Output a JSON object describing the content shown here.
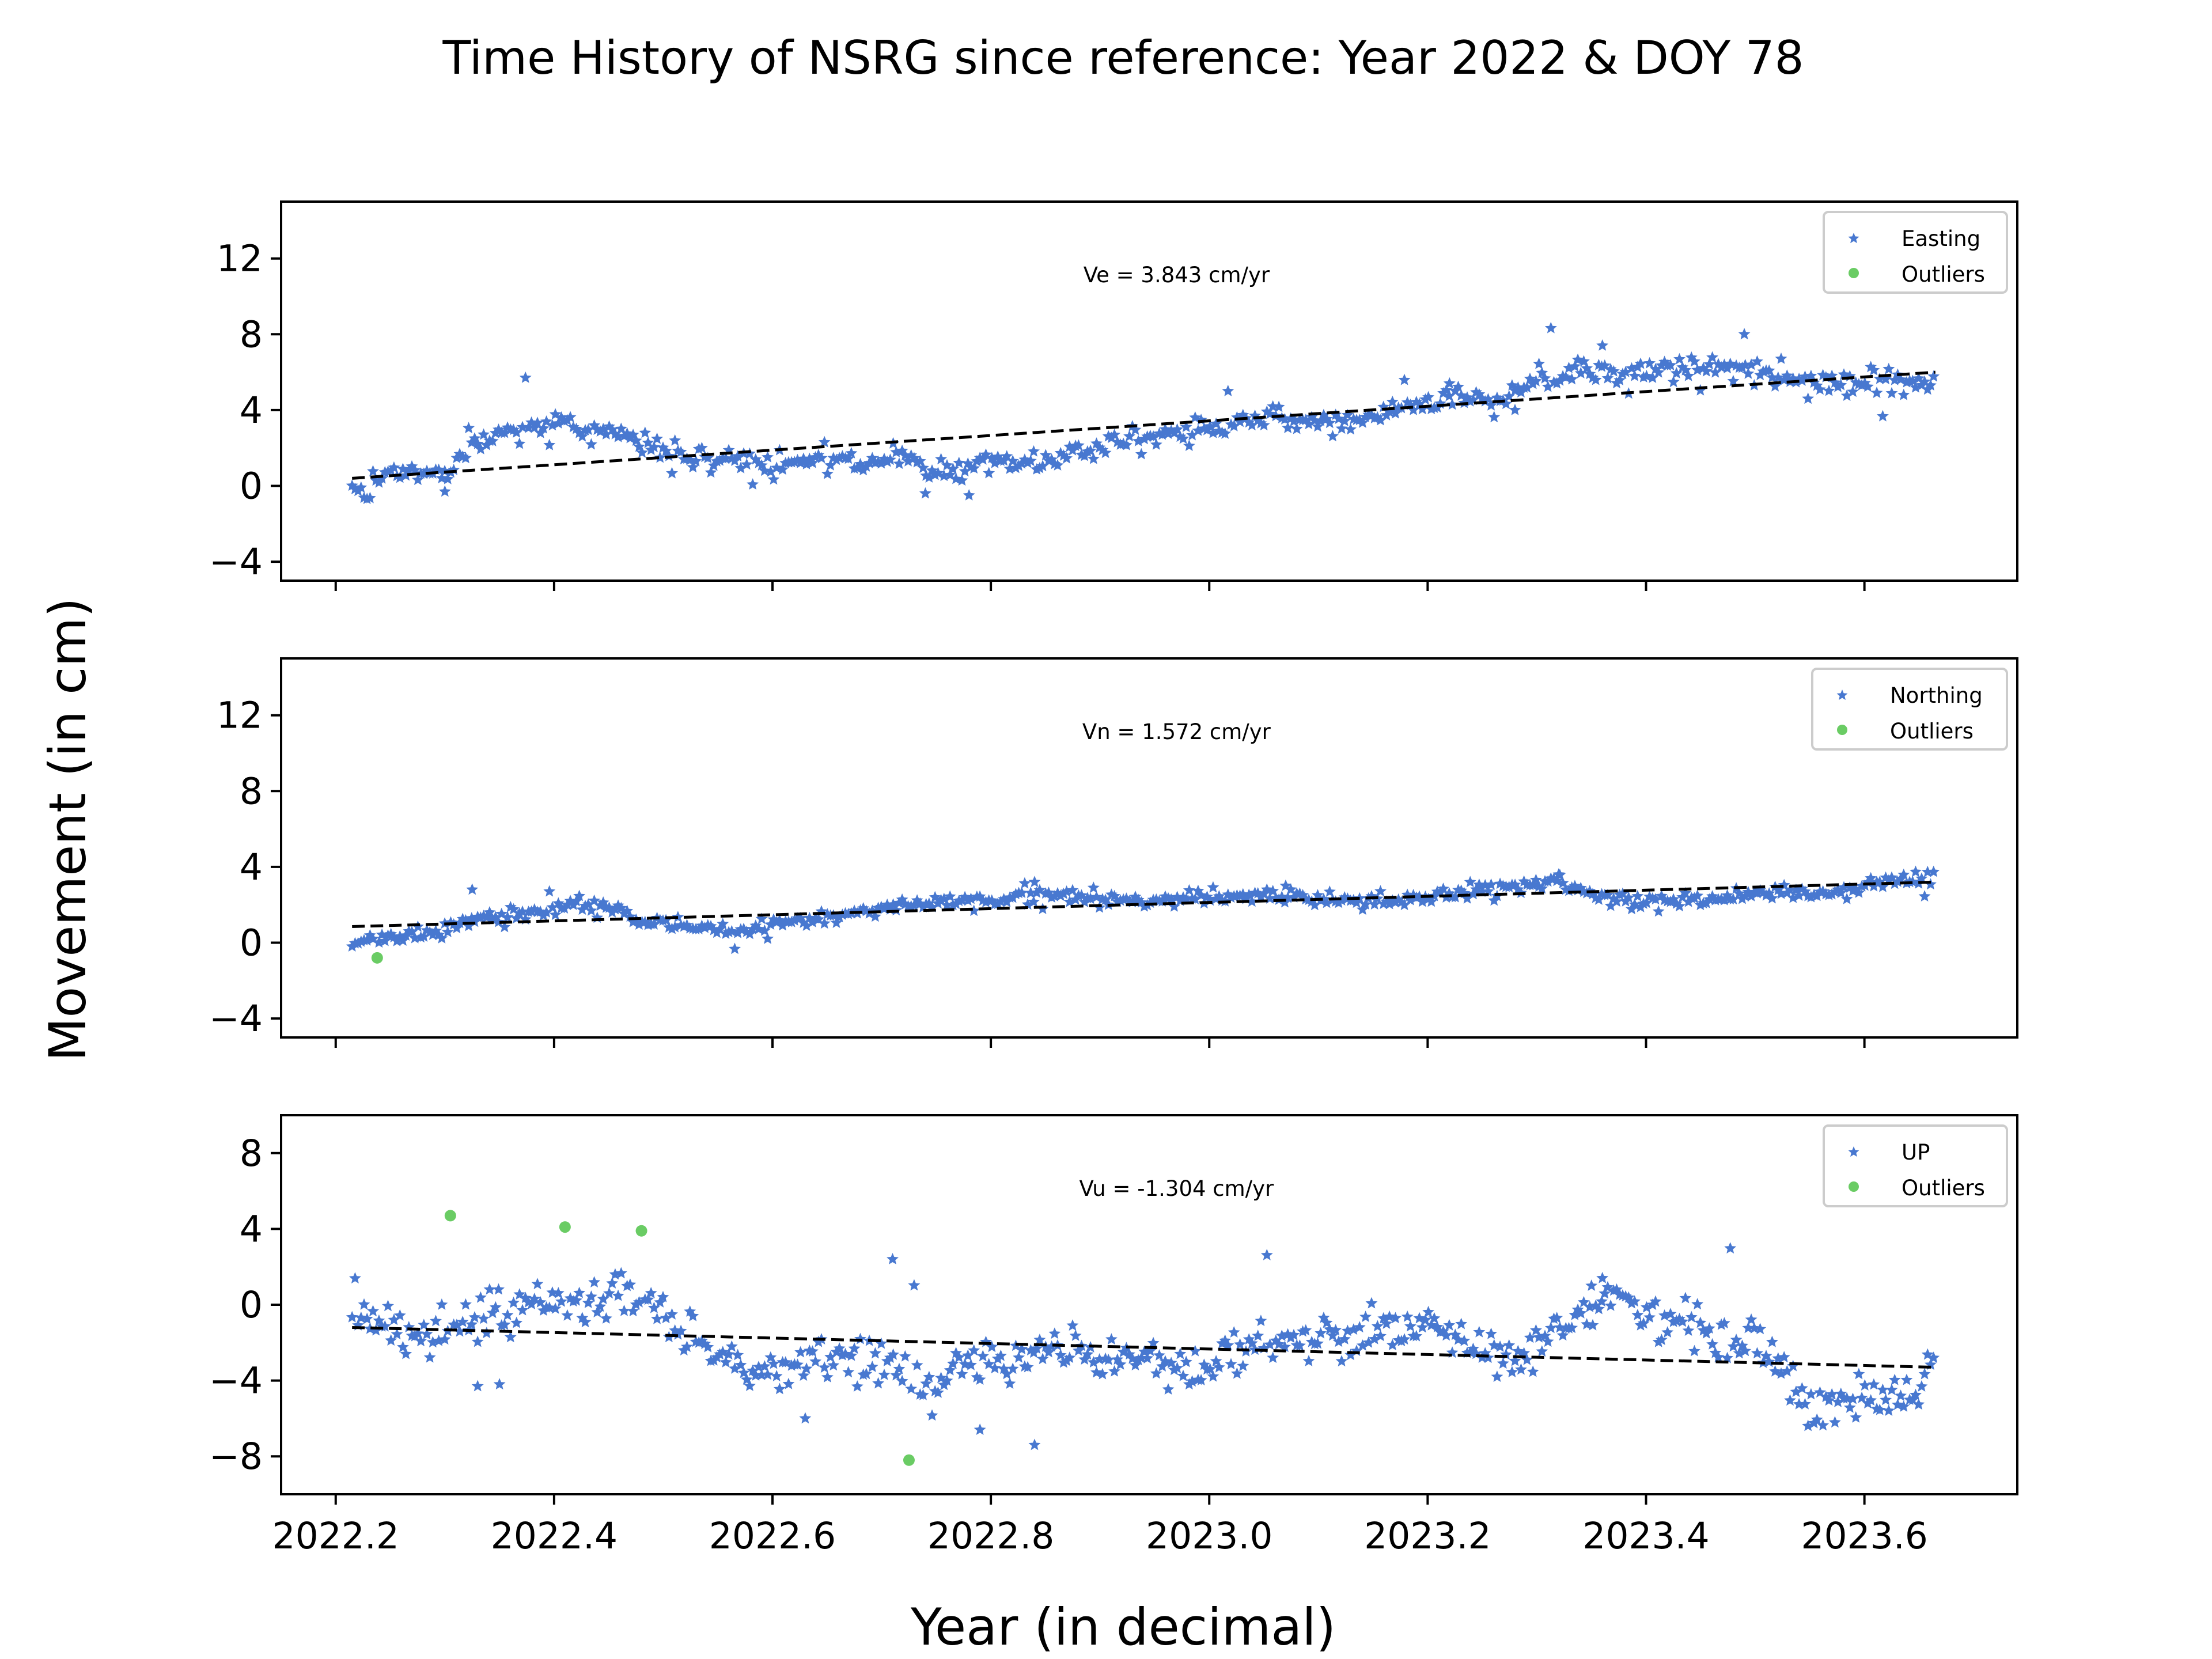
{
  "figure": {
    "title": "Time History of NSRG since reference: Year 2022 & DOY 78",
    "xlabel": "Year (in decimal)",
    "ylabel": "Movement (in cm)"
  },
  "colors": {
    "data": "#4878d0",
    "outliers": "#6acc64",
    "trend": "#000000"
  },
  "chart_data": [
    {
      "type": "scatter",
      "panel": "easting",
      "series": [
        {
          "name": "Easting"
        },
        {
          "name": "Outliers"
        }
      ],
      "annotation": "Ve =  3.843 cm/yr",
      "velocity": 3.843,
      "trend": {
        "x": [
          2022.215,
          2023.665
        ],
        "y": [
          0.4,
          6.0
        ]
      },
      "xlim": [
        2022.15,
        2023.74
      ],
      "ylim": [
        -5,
        15
      ],
      "yticks": [
        -4,
        0,
        4,
        8,
        12
      ],
      "xticks": [
        2022.2,
        2022.4,
        2022.6,
        2022.8,
        2023.0,
        2023.2,
        2023.4,
        2023.6
      ],
      "legend": "top-right",
      "profile": [
        [
          2022.215,
          0.1
        ],
        [
          2022.23,
          -0.5
        ],
        [
          2022.25,
          0.8
        ],
        [
          2022.28,
          0.9
        ],
        [
          2022.3,
          0.5
        ],
        [
          2022.32,
          1.8
        ],
        [
          2022.35,
          3.0
        ],
        [
          2022.38,
          2.8
        ],
        [
          2022.4,
          3.6
        ],
        [
          2022.42,
          3.0
        ],
        [
          2022.45,
          3.0
        ],
        [
          2022.48,
          2.2
        ],
        [
          2022.52,
          1.5
        ],
        [
          2022.56,
          1.4
        ],
        [
          2022.6,
          1.0
        ],
        [
          2022.64,
          1.6
        ],
        [
          2022.68,
          1.0
        ],
        [
          2022.72,
          1.6
        ],
        [
          2022.76,
          0.6
        ],
        [
          2022.8,
          1.3
        ],
        [
          2022.84,
          1.2
        ],
        [
          2022.87,
          1.8
        ],
        [
          2022.9,
          2.2
        ],
        [
          2022.94,
          2.5
        ],
        [
          2022.98,
          3.0
        ],
        [
          2023.02,
          3.0
        ],
        [
          2023.06,
          3.8
        ],
        [
          2023.1,
          3.4
        ],
        [
          2023.14,
          3.6
        ],
        [
          2023.18,
          4.2
        ],
        [
          2023.22,
          4.5
        ],
        [
          2023.26,
          4.6
        ],
        [
          2023.3,
          5.4
        ],
        [
          2023.34,
          6.2
        ],
        [
          2023.38,
          5.8
        ],
        [
          2023.42,
          6.2
        ],
        [
          2023.46,
          6.4
        ],
        [
          2023.5,
          6.0
        ],
        [
          2023.54,
          5.6
        ],
        [
          2023.58,
          5.4
        ],
        [
          2023.62,
          5.4
        ],
        [
          2023.665,
          5.6
        ]
      ],
      "noise": 0.55,
      "seed": 11,
      "outliers": {
        "x": [],
        "y": []
      },
      "extra_points": {
        "x": [
          2022.3,
          2022.78,
          2022.74,
          2023.22,
          2023.28,
          2023.36,
          2023.49
        ],
        "y": [
          -0.3,
          -0.5,
          -0.4,
          5.4,
          4.0,
          7.4,
          8.0
        ]
      }
    },
    {
      "type": "scatter",
      "panel": "northing",
      "series": [
        {
          "name": "Northing"
        },
        {
          "name": "Outliers"
        }
      ],
      "annotation": "Vn =  1.572 cm/yr",
      "velocity": 1.572,
      "trend": {
        "x": [
          2022.215,
          2023.665
        ],
        "y": [
          0.85,
          3.2
        ]
      },
      "xlim": [
        2022.15,
        2023.74
      ],
      "ylim": [
        -5,
        15
      ],
      "yticks": [
        -4,
        0,
        4,
        8,
        12
      ],
      "xticks": [
        2022.2,
        2022.4,
        2022.6,
        2022.8,
        2023.0,
        2023.2,
        2023.4,
        2023.6
      ],
      "legend": "top-right",
      "profile": [
        [
          2022.215,
          0.0
        ],
        [
          2022.25,
          0.2
        ],
        [
          2022.3,
          0.6
        ],
        [
          2022.34,
          1.6
        ],
        [
          2022.38,
          1.6
        ],
        [
          2022.42,
          2.0
        ],
        [
          2022.46,
          1.8
        ],
        [
          2022.48,
          1.0
        ],
        [
          2022.52,
          1.0
        ],
        [
          2022.56,
          0.5
        ],
        [
          2022.6,
          1.0
        ],
        [
          2022.64,
          1.2
        ],
        [
          2022.68,
          1.6
        ],
        [
          2022.72,
          2.0
        ],
        [
          2022.76,
          2.2
        ],
        [
          2022.8,
          2.2
        ],
        [
          2022.84,
          2.6
        ],
        [
          2022.88,
          2.4
        ],
        [
          2022.92,
          2.2
        ],
        [
          2022.96,
          2.2
        ],
        [
          2023.0,
          2.4
        ],
        [
          2023.04,
          2.4
        ],
        [
          2023.08,
          2.4
        ],
        [
          2023.12,
          2.2
        ],
        [
          2023.16,
          2.2
        ],
        [
          2023.2,
          2.4
        ],
        [
          2023.24,
          2.8
        ],
        [
          2023.28,
          3.0
        ],
        [
          2023.32,
          3.2
        ],
        [
          2023.36,
          2.4
        ],
        [
          2023.4,
          2.2
        ],
        [
          2023.44,
          2.2
        ],
        [
          2023.48,
          2.4
        ],
        [
          2023.52,
          2.6
        ],
        [
          2023.56,
          2.6
        ],
        [
          2023.6,
          3.0
        ],
        [
          2023.665,
          3.6
        ]
      ],
      "noise": 0.3,
      "seed": 23,
      "outliers": {
        "x": [
          2022.238
        ],
        "y": [
          -0.8
        ]
      },
      "extra_points": {
        "x": [
          2022.325,
          2022.84,
          2023.07,
          2023.32
        ],
        "y": [
          2.8,
          3.2,
          3.0,
          3.6
        ]
      }
    },
    {
      "type": "scatter",
      "panel": "up",
      "series": [
        {
          "name": "UP"
        },
        {
          "name": "Outliers"
        }
      ],
      "annotation": "Vu = -1.304 cm/yr",
      "velocity": -1.304,
      "trend": {
        "x": [
          2022.215,
          2023.665
        ],
        "y": [
          -1.2,
          -3.3
        ]
      },
      "xlim": [
        2022.15,
        2023.74
      ],
      "ylim": [
        -10,
        10
      ],
      "yticks": [
        -8,
        -4,
        0,
        4,
        8
      ],
      "xticks": [
        2022.2,
        2022.4,
        2022.6,
        2022.8,
        2023.0,
        2023.2,
        2023.4,
        2023.6
      ],
      "xticklabels": [
        "2022.2",
        "2022.4",
        "2022.6",
        "2022.8",
        "2023.0",
        "2023.2",
        "2023.4",
        "2023.6"
      ],
      "legend": "top-right",
      "profile": [
        [
          2022.215,
          0.0
        ],
        [
          2022.24,
          -0.8
        ],
        [
          2022.27,
          -2.0
        ],
        [
          2022.3,
          -1.2
        ],
        [
          2022.34,
          -0.8
        ],
        [
          2022.38,
          0.2
        ],
        [
          2022.42,
          -0.2
        ],
        [
          2022.46,
          0.8
        ],
        [
          2022.5,
          -0.5
        ],
        [
          2022.54,
          -2.5
        ],
        [
          2022.58,
          -3.2
        ],
        [
          2022.62,
          -3.6
        ],
        [
          2022.66,
          -2.8
        ],
        [
          2022.7,
          -3.0
        ],
        [
          2022.74,
          -4.5
        ],
        [
          2022.78,
          -3.0
        ],
        [
          2022.82,
          -3.2
        ],
        [
          2022.86,
          -2.2
        ],
        [
          2022.9,
          -2.6
        ],
        [
          2022.94,
          -3.0
        ],
        [
          2022.98,
          -3.4
        ],
        [
          2023.02,
          -2.6
        ],
        [
          2023.06,
          -1.8
        ],
        [
          2023.1,
          -1.4
        ],
        [
          2023.14,
          -1.6
        ],
        [
          2023.18,
          -0.8
        ],
        [
          2023.22,
          -1.8
        ],
        [
          2023.26,
          -2.6
        ],
        [
          2023.3,
          -2.2
        ],
        [
          2023.34,
          -0.4
        ],
        [
          2023.38,
          0.0
        ],
        [
          2023.42,
          -1.0
        ],
        [
          2023.46,
          -1.5
        ],
        [
          2023.5,
          -1.8
        ],
        [
          2023.54,
          -5.0
        ],
        [
          2023.58,
          -5.2
        ],
        [
          2023.62,
          -4.8
        ],
        [
          2023.65,
          -4.6
        ],
        [
          2023.665,
          -2.4
        ]
      ],
      "noise": 1.0,
      "seed": 37,
      "outliers": {
        "x": [
          2022.305,
          2022.41,
          2022.48,
          2022.725
        ],
        "y": [
          4.7,
          4.1,
          3.9,
          -8.2
        ]
      },
      "extra_points": {
        "x": [
          2022.71,
          2022.79,
          2022.84,
          2022.33,
          2022.35,
          2022.63,
          2023.36,
          2023.35
        ],
        "y": [
          2.4,
          -6.6,
          -7.4,
          -4.3,
          -4.2,
          -6.0,
          1.4,
          1.0
        ]
      }
    }
  ]
}
